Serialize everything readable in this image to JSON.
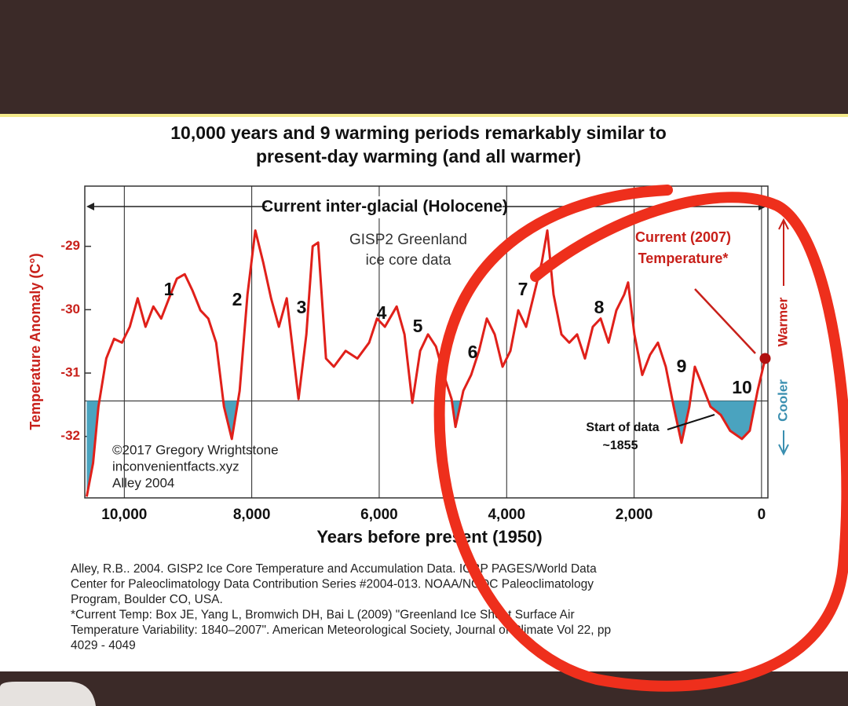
{
  "chart_data": {
    "type": "line",
    "title": [
      "10,000 years and 9 warming periods remarkably similar to",
      "present-day warming (and all warmer)"
    ],
    "xlabel": "Years before present (1950)",
    "ylabel": "Temperature Anomaly (C°)",
    "period_label": "Current inter-glacial (Holocene)",
    "source_label": [
      "GISP2 Greenland",
      "ice core data"
    ],
    "current_label": [
      "Current (2007)",
      "Temperature*"
    ],
    "start_label": [
      "Start of data",
      "~1855"
    ],
    "credit": [
      "©2017 Gregory Wrightstone",
      "inconvenientfacts.xyz",
      "Alley 2004"
    ],
    "direction_labels": [
      "Warmer",
      "Cooler"
    ],
    "annotations": [
      "1",
      "2",
      "3",
      "4",
      "5",
      "6",
      "7",
      "8",
      "9",
      "10"
    ],
    "citation": [
      "Alley, R.B.. 2004. GISP2 Ice Core Temperature and Accumulation Data. IGBP PAGES/World Data",
      "Center for Paleoclimatology Data Contribution Series #2004-013. NOAA/NGDC Paleoclimatology",
      "Program, Boulder CO, USA.",
      "*Current Temp: Box JE, Yang L, Bromwich DH, Bai L (2009) \"Greenland Ice Sheet Surface Air",
      "Temperature Variability: 1840–2007\". American Meteorological Society, Journal of Climate Vol 22, pp",
      "4029 - 4049"
    ],
    "x": [
      10590,
      10490,
      10406,
      10283,
      10160,
      10037,
      9914,
      9790,
      9667,
      9544,
      9421,
      9298,
      9175,
      9052,
      8929,
      8805,
      8682,
      8559,
      8436,
      8313,
      8190,
      8067,
      7944,
      7821,
      7697,
      7574,
      7451,
      7266,
      7143,
      7044,
      6958,
      6835,
      6712,
      6527,
      6342,
      6158,
      6034,
      5911,
      5726,
      5603,
      5480,
      5357,
      5234,
      5110,
      4987,
      4864,
      4803,
      4680,
      4557,
      4434,
      4311,
      4187,
      4064,
      3941,
      3818,
      3695,
      3571,
      3448,
      3362,
      3264,
      3140,
      3017,
      2894,
      2771,
      2648,
      2525,
      2401,
      2278,
      2155,
      2094,
      1995,
      1872,
      1749,
      1626,
      1503,
      1379,
      1256,
      1133,
      1047,
      948,
      801,
      640,
      493,
      308,
      185,
      62,
      -57
    ],
    "values": [
      -32.95,
      -32.42,
      -31.53,
      -30.77,
      -30.46,
      -30.52,
      -30.27,
      -29.82,
      -30.27,
      -29.95,
      -30.14,
      -29.82,
      -29.51,
      -29.44,
      -29.7,
      -30.01,
      -30.14,
      -30.52,
      -31.53,
      -32.04,
      -31.28,
      -29.76,
      -28.75,
      -29.25,
      -29.82,
      -30.27,
      -29.82,
      -31.41,
      -30.39,
      -29.0,
      -28.94,
      -30.77,
      -30.9,
      -30.65,
      -30.77,
      -30.52,
      -30.14,
      -30.27,
      -29.95,
      -30.39,
      -31.47,
      -30.65,
      -30.39,
      -30.58,
      -31.03,
      -31.41,
      -31.85,
      -31.28,
      -31.03,
      -30.65,
      -30.14,
      -30.39,
      -30.9,
      -30.65,
      -30.01,
      -30.27,
      -29.76,
      -29.25,
      -28.75,
      -29.76,
      -30.39,
      -30.52,
      -30.39,
      -30.77,
      -30.27,
      -30.14,
      -30.52,
      -30.01,
      -29.76,
      -29.57,
      -30.39,
      -31.03,
      -30.71,
      -30.52,
      -30.9,
      -31.53,
      -32.1,
      -31.53,
      -30.9,
      -31.15,
      -31.53,
      -31.66,
      -31.91,
      -32.04,
      -31.91,
      -31.28,
      -30.77
    ],
    "color": "#e0201a",
    "shade_color": "#4aa3bf",
    "shade_below": -31.44,
    "xlim": [
      10620,
      -100
    ],
    "ylim": [
      -32.97,
      -28.05
    ],
    "xticks": [
      {
        "value": 10000,
        "label": "10,000"
      },
      {
        "value": 8000,
        "label": "8,000"
      },
      {
        "value": 6000,
        "label": "6,000"
      },
      {
        "value": 4000,
        "label": "4,000"
      },
      {
        "value": 2000,
        "label": "2,000"
      },
      0
    ],
    "yticks": [
      -29,
      -30,
      -31,
      -32
    ],
    "grid": true
  }
}
